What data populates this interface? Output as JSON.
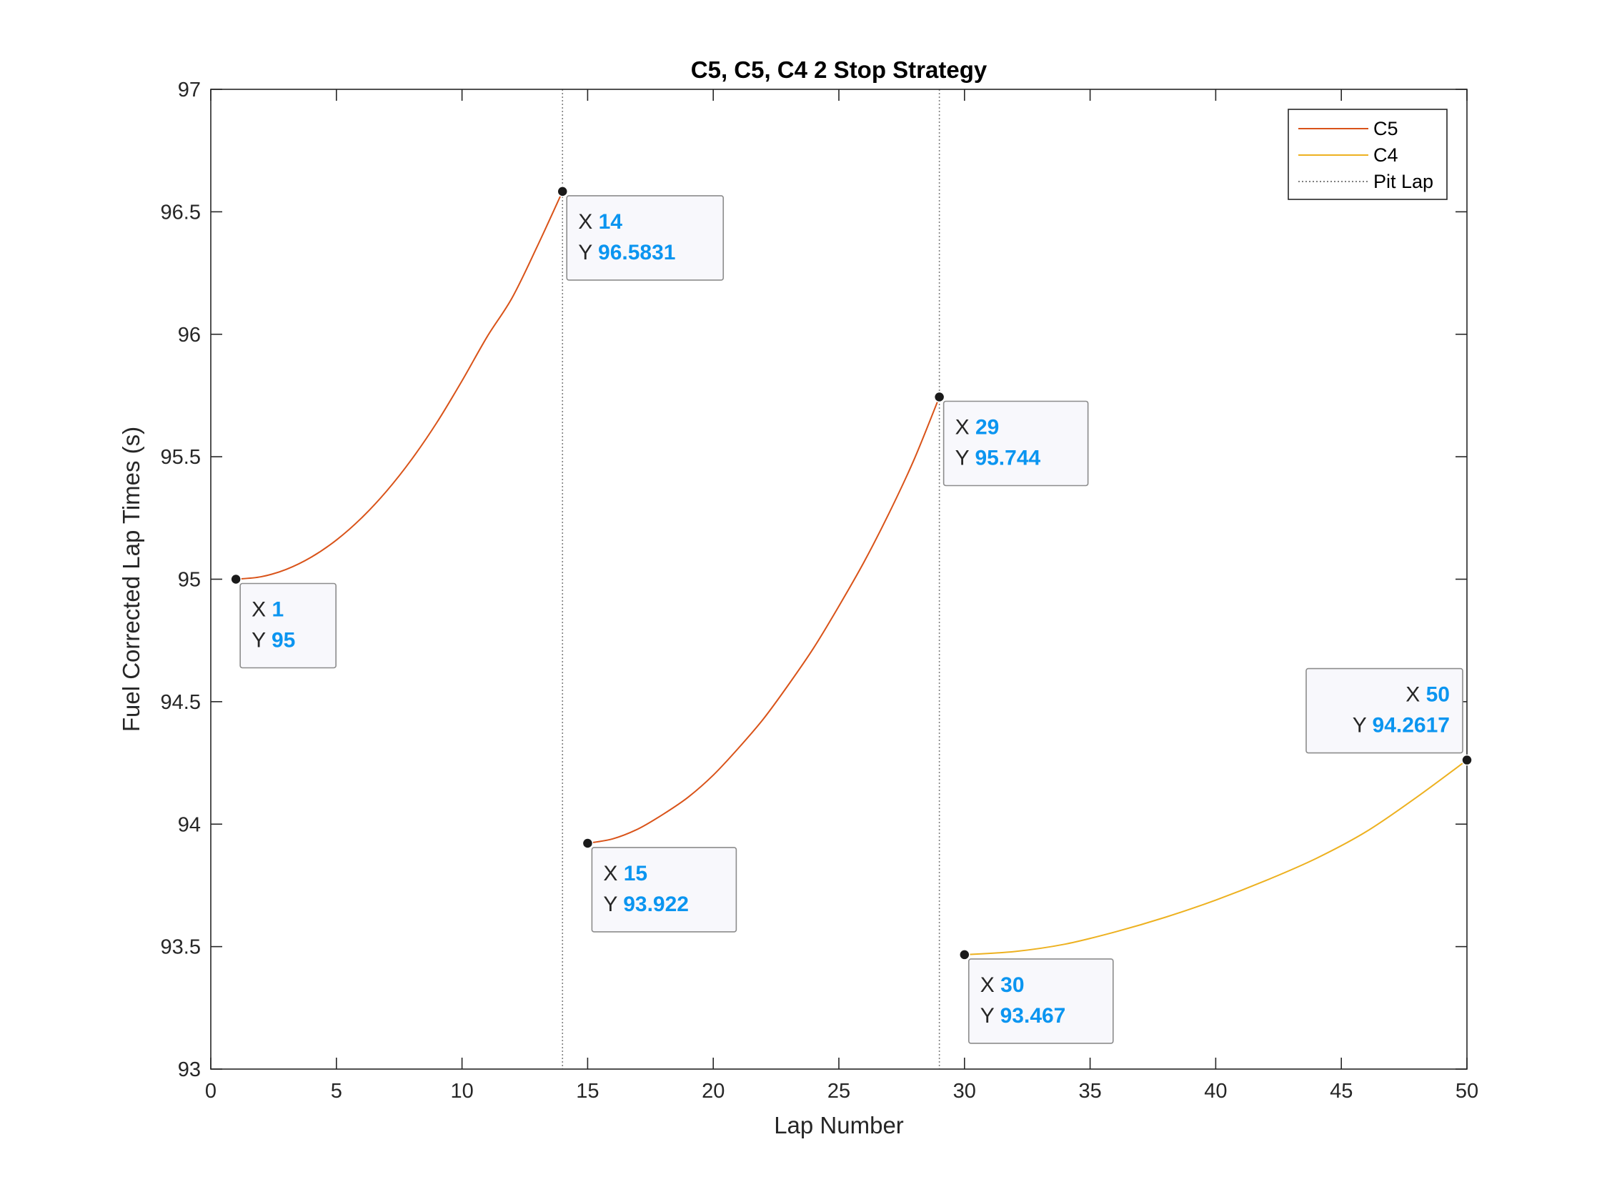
{
  "chart_data": {
    "type": "line",
    "title": "C5, C5, C4 2 Stop Strategy",
    "xlabel": "Lap Number",
    "ylabel": "Fuel Corrected Lap Times (s)",
    "xlim": [
      0,
      50
    ],
    "ylim": [
      93,
      97
    ],
    "xticks": [
      "0",
      "5",
      "10",
      "15",
      "20",
      "25",
      "30",
      "35",
      "40",
      "45",
      "50"
    ],
    "yticks": [
      "93",
      "93.5",
      "94",
      "94.5",
      "95",
      "95.5",
      "96",
      "96.5",
      "97"
    ],
    "grid": false,
    "legend_position": "top-right",
    "legend": [
      "C5",
      "C4",
      "Pit Lap"
    ],
    "series": [
      {
        "name": "C5",
        "color": "#d95319",
        "stints": [
          {
            "x": [
              1,
              2,
              3,
              4,
              5,
              6,
              7,
              8,
              9,
              10,
              11,
              12,
              13,
              14
            ],
            "y": [
              95.0,
              95.01,
              95.04,
              95.09,
              95.16,
              95.25,
              95.36,
              95.49,
              95.64,
              95.81,
              95.99,
              96.15,
              96.36,
              96.5831
            ]
          },
          {
            "x": [
              15,
              16,
              17,
              18,
              19,
              20,
              21,
              22,
              23,
              24,
              25,
              26,
              27,
              28,
              29
            ],
            "y": [
              93.922,
              93.94,
              93.98,
              94.04,
              94.11,
              94.2,
              94.31,
              94.43,
              94.57,
              94.72,
              94.89,
              95.07,
              95.27,
              95.49,
              95.744
            ]
          }
        ]
      },
      {
        "name": "C4",
        "color": "#edb120",
        "stints": [
          {
            "x": [
              30,
              32,
              34,
              36,
              38,
              40,
              42,
              44,
              46,
              48,
              50
            ],
            "y": [
              93.467,
              93.48,
              93.51,
              93.56,
              93.62,
              93.69,
              93.77,
              93.86,
              93.97,
              94.11,
              94.2617
            ]
          }
        ]
      }
    ],
    "pit_laps": [
      14,
      29
    ],
    "pit_color": "#7f7f7f",
    "data_tips": [
      {
        "x": 1,
        "y": 95,
        "x_text": "1",
        "y_text": "95",
        "side": "below-right"
      },
      {
        "x": 14,
        "y": 96.5831,
        "x_text": "14",
        "y_text": "96.5831",
        "side": "below-right"
      },
      {
        "x": 15,
        "y": 93.922,
        "x_text": "15",
        "y_text": "93.922",
        "side": "below-right"
      },
      {
        "x": 29,
        "y": 95.744,
        "x_text": "29",
        "y_text": "95.744",
        "side": "below-right"
      },
      {
        "x": 30,
        "y": 93.467,
        "x_text": "30",
        "y_text": "93.467",
        "side": "below-right"
      },
      {
        "x": 50,
        "y": 94.2617,
        "x_text": "50",
        "y_text": "94.2617",
        "side": "above-left"
      }
    ],
    "tip_key_x": "X",
    "tip_key_y": "Y"
  }
}
